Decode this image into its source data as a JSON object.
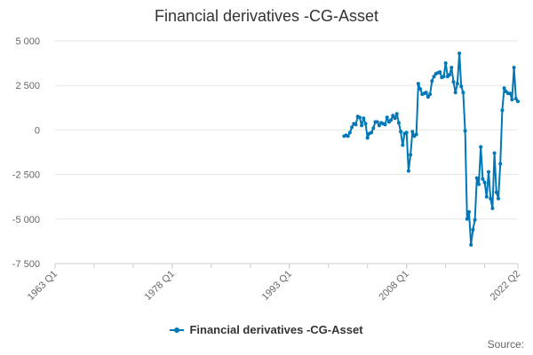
{
  "chart_data": {
    "type": "line",
    "title": "Financial derivatives -CG-Asset",
    "xlabel": "",
    "ylabel": "",
    "ylim": [
      -7500,
      5000
    ],
    "y_ticks": [
      5000,
      2500,
      0,
      -2500,
      -5000,
      -7500
    ],
    "y_tick_labels": [
      "5 000",
      "2 500",
      "0",
      "-2 500",
      "-5 000",
      "-7 500"
    ],
    "x_tick_labels": [
      "1963 Q1",
      "1978 Q1",
      "1993 Q1",
      "2008 Q1",
      "2022 Q2"
    ],
    "x_tick_positions": [
      1963.0,
      1978.0,
      1993.0,
      2008.0,
      2022.25
    ],
    "grid": true,
    "legend": "bottom",
    "series": [
      {
        "name": "Financial derivatives -CG-Asset",
        "color": "#0077b6",
        "points": [
          [
            "2000 Q1",
            -350
          ],
          [
            "2000 Q2",
            -300
          ],
          [
            "2000 Q3",
            -350
          ],
          [
            "2000 Q4",
            -150
          ],
          [
            "2001 Q1",
            150
          ],
          [
            "2001 Q2",
            350
          ],
          [
            "2001 Q3",
            300
          ],
          [
            "2001 Q4",
            750
          ],
          [
            "2002 Q1",
            700
          ],
          [
            "2002 Q2",
            250
          ],
          [
            "2002 Q3",
            650
          ],
          [
            "2002 Q4",
            350
          ],
          [
            "2003 Q1",
            -450
          ],
          [
            "2003 Q2",
            -200
          ],
          [
            "2003 Q3",
            -150
          ],
          [
            "2003 Q4",
            100
          ],
          [
            "2004 Q1",
            450
          ],
          [
            "2004 Q2",
            450
          ],
          [
            "2004 Q3",
            250
          ],
          [
            "2004 Q4",
            400
          ],
          [
            "2005 Q1",
            350
          ],
          [
            "2005 Q2",
            300
          ],
          [
            "2005 Q3",
            700
          ],
          [
            "2005 Q4",
            450
          ],
          [
            "2006 Q1",
            550
          ],
          [
            "2006 Q2",
            800
          ],
          [
            "2006 Q3",
            650
          ],
          [
            "2006 Q4",
            900
          ],
          [
            "2007 Q1",
            400
          ],
          [
            "2007 Q2",
            -100
          ],
          [
            "2007 Q3",
            -850
          ],
          [
            "2007 Q4",
            -200
          ],
          [
            "2008 Q1",
            -150
          ],
          [
            "2008 Q2",
            -2300
          ],
          [
            "2008 Q3",
            -1400
          ],
          [
            "2008 Q4",
            -100
          ],
          [
            "2009 Q1",
            -350
          ],
          [
            "2009 Q2",
            -250
          ],
          [
            "2009 Q3",
            2600
          ],
          [
            "2009 Q4",
            2300
          ],
          [
            "2010 Q1",
            2000
          ],
          [
            "2010 Q2",
            2050
          ],
          [
            "2010 Q3",
            2100
          ],
          [
            "2010 Q4",
            1850
          ],
          [
            "2011 Q1",
            2000
          ],
          [
            "2011 Q2",
            2750
          ],
          [
            "2011 Q3",
            3000
          ],
          [
            "2011 Q4",
            3150
          ],
          [
            "2012 Q1",
            3200
          ],
          [
            "2012 Q2",
            3250
          ],
          [
            "2012 Q3",
            2950
          ],
          [
            "2012 Q4",
            3000
          ],
          [
            "2013 Q1",
            3750
          ],
          [
            "2013 Q2",
            3000
          ],
          [
            "2013 Q3",
            3100
          ],
          [
            "2013 Q4",
            3500
          ],
          [
            "2014 Q1",
            2700
          ],
          [
            "2014 Q2",
            2100
          ],
          [
            "2014 Q3",
            2600
          ],
          [
            "2014 Q4",
            4300
          ],
          [
            "2015 Q1",
            2450
          ],
          [
            "2015 Q2",
            2100
          ],
          [
            "2015 Q3",
            -50
          ],
          [
            "2015 Q4",
            -5000
          ],
          [
            "2016 Q1",
            -4600
          ],
          [
            "2016 Q2",
            -6450
          ],
          [
            "2016 Q3",
            -5600
          ],
          [
            "2016 Q4",
            -5050
          ],
          [
            "2017 Q1",
            -2700
          ],
          [
            "2017 Q2",
            -3050
          ],
          [
            "2017 Q3",
            -950
          ],
          [
            "2017 Q4",
            -2750
          ],
          [
            "2018 Q1",
            -2950
          ],
          [
            "2018 Q2",
            -3750
          ],
          [
            "2018 Q3",
            -2350
          ],
          [
            "2018 Q4",
            -3850
          ],
          [
            "2019 Q1",
            -4400
          ],
          [
            "2019 Q2",
            -1300
          ],
          [
            "2019 Q3",
            -3500
          ],
          [
            "2019 Q4",
            -3850
          ],
          [
            "2020 Q1",
            -1900
          ],
          [
            "2020 Q2",
            1100
          ],
          [
            "2020 Q3",
            2350
          ],
          [
            "2020 Q4",
            2150
          ],
          [
            "2021 Q1",
            2050
          ],
          [
            "2021 Q2",
            2050
          ],
          [
            "2021 Q3",
            1700
          ],
          [
            "2021 Q4",
            3500
          ],
          [
            "2022 Q1",
            1750
          ],
          [
            "2022 Q2",
            1600
          ]
        ]
      }
    ]
  },
  "source_label": "Source:"
}
